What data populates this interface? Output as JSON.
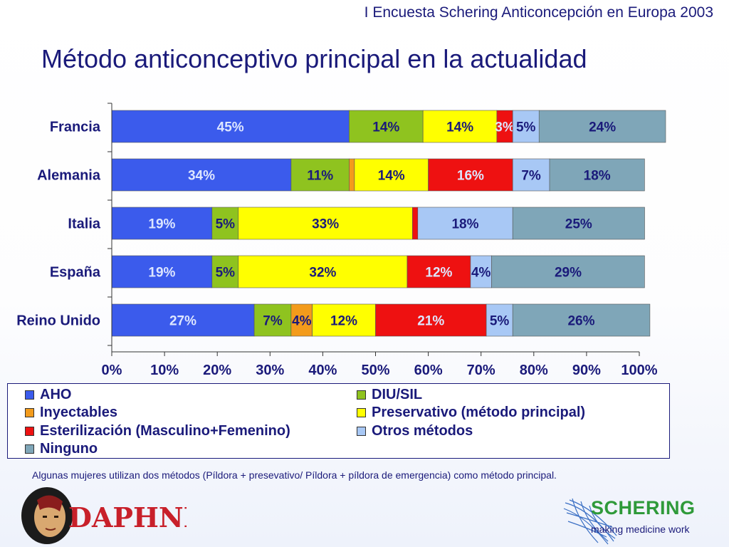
{
  "header": {
    "survey_title": "I Encuesta Schering Anticoncepción en Europa 2003"
  },
  "title": "Método anticonceptivo principal en la actualidad",
  "chart_data": {
    "type": "bar",
    "orientation": "horizontal",
    "stacked": true,
    "categories": [
      "Francia",
      "Alemania",
      "Italia",
      "España",
      "Reino Unido"
    ],
    "series": [
      {
        "name": "AHO",
        "color": "#3b5bec",
        "values": [
          45,
          34,
          19,
          19,
          27
        ],
        "labels": [
          "45%",
          "34%",
          "19%",
          "19%",
          "27%"
        ]
      },
      {
        "name": "DIU/SIL",
        "color": "#8fc31f",
        "values": [
          14,
          11,
          5,
          5,
          7
        ],
        "labels": [
          "14%",
          "11%",
          "5%",
          "5%",
          "7%"
        ]
      },
      {
        "name": "Inyectables",
        "color": "#f39b1b",
        "values": [
          0,
          1,
          0,
          0,
          4
        ],
        "labels": [
          "",
          "",
          "",
          "",
          "4%"
        ]
      },
      {
        "name": "Preservativo (método principal)",
        "color": "#ffff00",
        "values": [
          14,
          14,
          33,
          32,
          12
        ],
        "labels": [
          "14%",
          "14%",
          "33%",
          "32%",
          "12%"
        ]
      },
      {
        "name": "Esterilización (Masculino+Femenino)",
        "color": "#ee1111",
        "values": [
          3,
          16,
          1,
          12,
          21
        ],
        "labels": [
          "3%",
          "16%",
          "",
          "12%",
          "21%"
        ]
      },
      {
        "name": "Otros métodos",
        "color": "#a8c8f5",
        "values": [
          5,
          7,
          18,
          4,
          5
        ],
        "labels": [
          "5%",
          "7%",
          "18%",
          "4%",
          "5%"
        ]
      },
      {
        "name": "Ninguno",
        "color": "#7fa6b8",
        "values": [
          24,
          18,
          25,
          29,
          26
        ],
        "labels": [
          "24%",
          "18%",
          "25%",
          "29%",
          "26%"
        ]
      }
    ],
    "xlim": [
      0,
      100
    ],
    "ticks": [
      "0%",
      "10%",
      "20%",
      "30%",
      "40%",
      "50%",
      "60%",
      "70%",
      "80%",
      "90%",
      "100%"
    ],
    "legend_position": "bottom",
    "grid": false
  },
  "legend": {
    "items": [
      {
        "label": "AHO",
        "color": "#3b5bec"
      },
      {
        "label": "DIU/SIL",
        "color": "#8fc31f"
      },
      {
        "label": "Inyectables",
        "color": "#f39b1b"
      },
      {
        "label": "Preservativo (método principal)",
        "color": "#ffff00"
      },
      {
        "label": "Esterilización (Masculino+Femenino)",
        "color": "#ee1111"
      },
      {
        "label": "Otros métodos",
        "color": "#a8c8f5"
      },
      {
        "label": "Ninguno",
        "color": "#7fa6b8"
      }
    ]
  },
  "footnote": "Algunas mujeres utilizan dos métodos (Píldora + presevativo/ Píldora + píldora de emergencia) como método principal.",
  "logos": {
    "left_logo_text": "DAPHNE",
    "brand": "SCHERING",
    "tagline": "making medicine work"
  }
}
